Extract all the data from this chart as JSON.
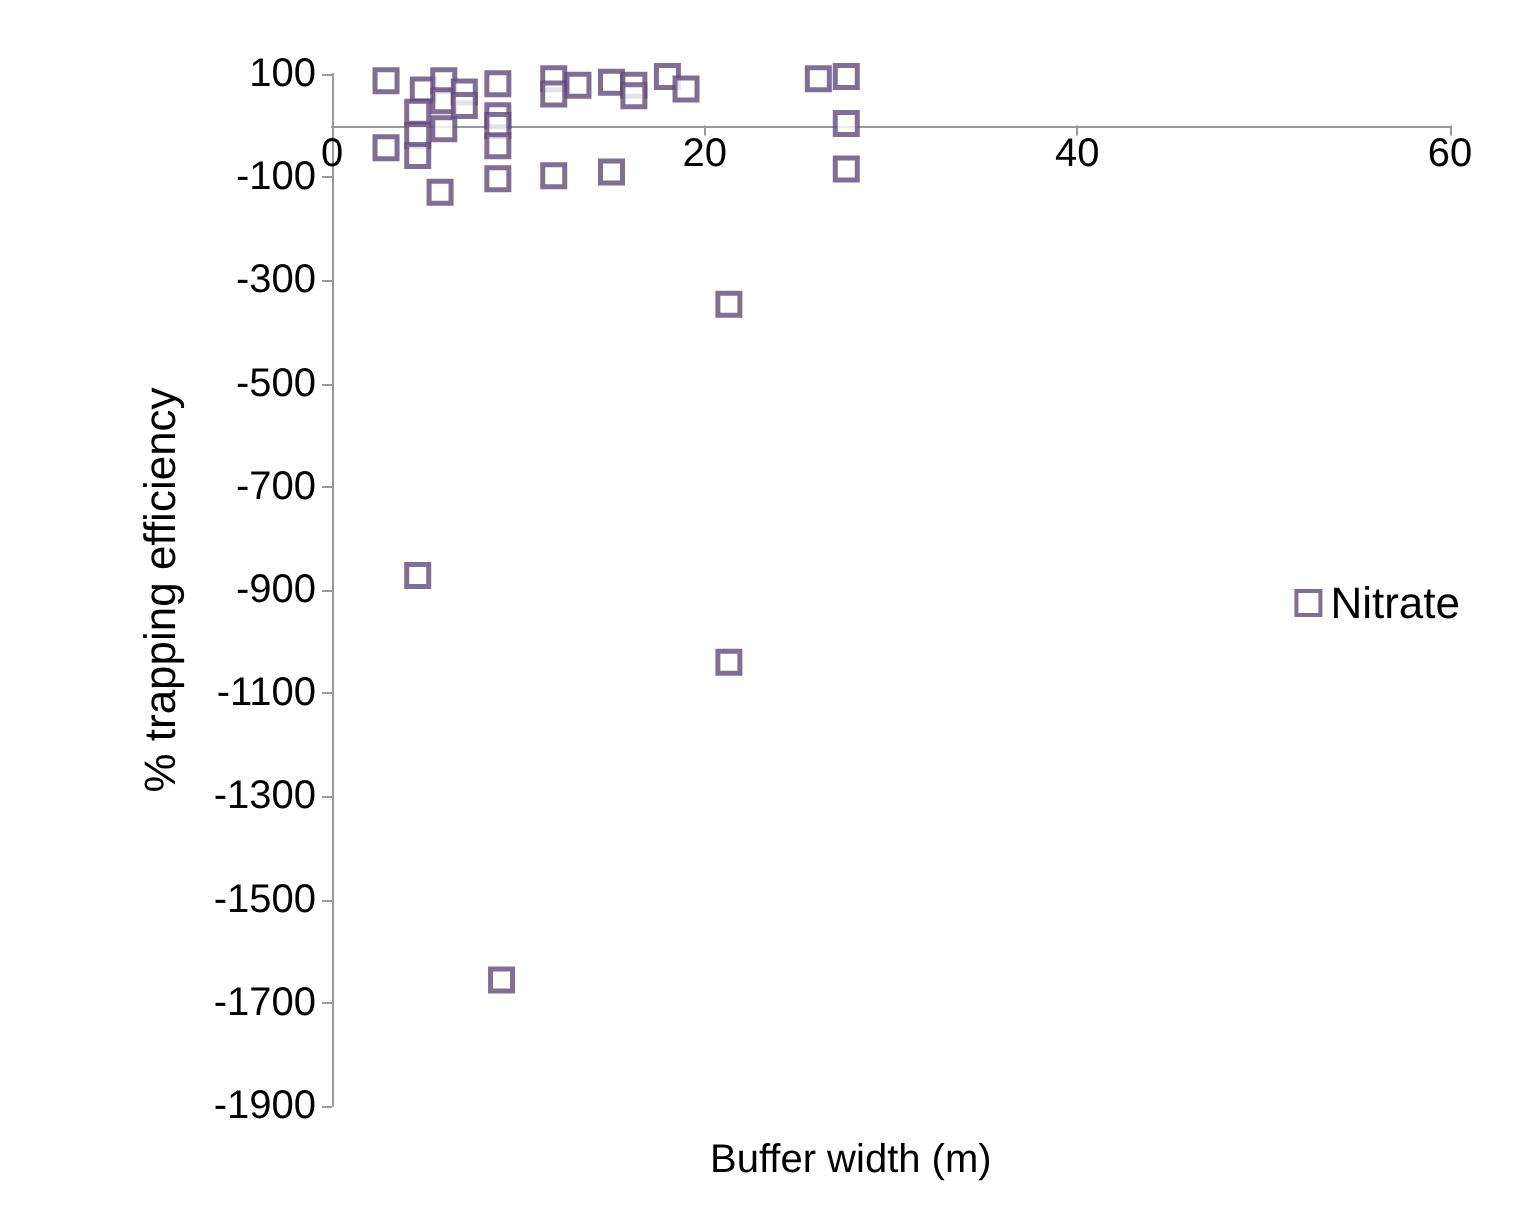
{
  "chart_data": {
    "type": "scatter",
    "xlabel": "Buffer width (m)",
    "ylabel": "% trapping efficiency",
    "series": [
      {
        "name": "Nitrate",
        "color": "#604a7b",
        "x": [
          2.9,
          2.9,
          4.9,
          4.6,
          4.6,
          4.6,
          6.0,
          6.0,
          6.0,
          5.8,
          7.1,
          7.1,
          8.9,
          8.9,
          8.9,
          8.9,
          8.9,
          11.9,
          11.9,
          13.2,
          11.9,
          15.0,
          16.2,
          16.2,
          15.0,
          18.0,
          19.0,
          26.1,
          27.6,
          27.6,
          27.6,
          21.3,
          4.6,
          21.3,
          9.1
        ],
        "values": [
          87,
          -43,
          69,
          26,
          -19,
          -58,
          87,
          48,
          -6,
          -129,
          65,
          39,
          81,
          19,
          0,
          -39,
          -103,
          91,
          61,
          78,
          -97,
          84,
          78,
          58,
          -90,
          95,
          71,
          91,
          95,
          4,
          -84,
          -346,
          -872,
          -1040,
          -1656
        ]
      }
    ],
    "xlim": [
      0,
      60
    ],
    "xticks": [
      0,
      20,
      40,
      60
    ],
    "ylim": [
      -1900,
      100
    ],
    "yticks": [
      100,
      -100,
      -300,
      -500,
      -700,
      -900,
      -1100,
      -1300,
      -1500,
      -1700,
      -1900
    ],
    "marker": "square",
    "legend": "right",
    "grid": false
  }
}
